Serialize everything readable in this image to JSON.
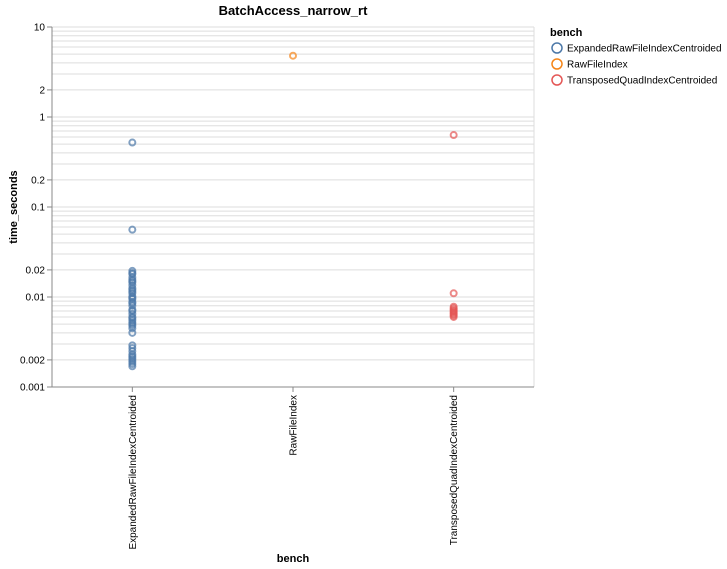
{
  "chart_data": {
    "type": "scatter",
    "title": "BatchAccess_narrow_rt",
    "xlabel": "bench",
    "ylabel": "time_seconds",
    "y_scale": "log",
    "ylim": [
      0.001,
      10
    ],
    "y_tick_labels": [
      "0.001",
      "0.002",
      "0.01",
      "0.02",
      "0.1",
      "0.2",
      "1",
      "2",
      "10"
    ],
    "y_tick_values": [
      0.001,
      0.002,
      0.01,
      0.02,
      0.1,
      0.2,
      1,
      2,
      10
    ],
    "categories": [
      "ExpandedRawFileIndexCentroided",
      "RawFileIndex",
      "TransposedQuadIndexCentroided"
    ],
    "grid": true,
    "legend": {
      "title": "bench",
      "position": "right"
    },
    "series": [
      {
        "name": "ExpandedRawFileIndexCentroided",
        "color": "#4c78a8",
        "category": "ExpandedRawFileIndexCentroided",
        "values": [
          0.52,
          0.056,
          0.0195,
          0.0185,
          0.018,
          0.0165,
          0.0155,
          0.015,
          0.0145,
          0.0135,
          0.0125,
          0.012,
          0.0115,
          0.011,
          0.0102,
          0.0098,
          0.0095,
          0.0088,
          0.0085,
          0.008,
          0.0072,
          0.007,
          0.0065,
          0.006,
          0.0058,
          0.0055,
          0.0052,
          0.005,
          0.0048,
          0.0045,
          0.004,
          0.0029,
          0.0027,
          0.0025,
          0.0023,
          0.0022,
          0.0021,
          0.002,
          0.0019,
          0.0018,
          0.0017
        ]
      },
      {
        "name": "RawFileIndex",
        "color": "#f58518",
        "category": "RawFileIndex",
        "values": [
          4.8
        ]
      },
      {
        "name": "TransposedQuadIndexCentroided",
        "color": "#e45756",
        "category": "TransposedQuadIndexCentroided",
        "values": [
          0.63,
          0.011,
          0.0078,
          0.0075,
          0.0072,
          0.007,
          0.0068,
          0.0066,
          0.0064,
          0.0062,
          0.006
        ]
      }
    ]
  }
}
